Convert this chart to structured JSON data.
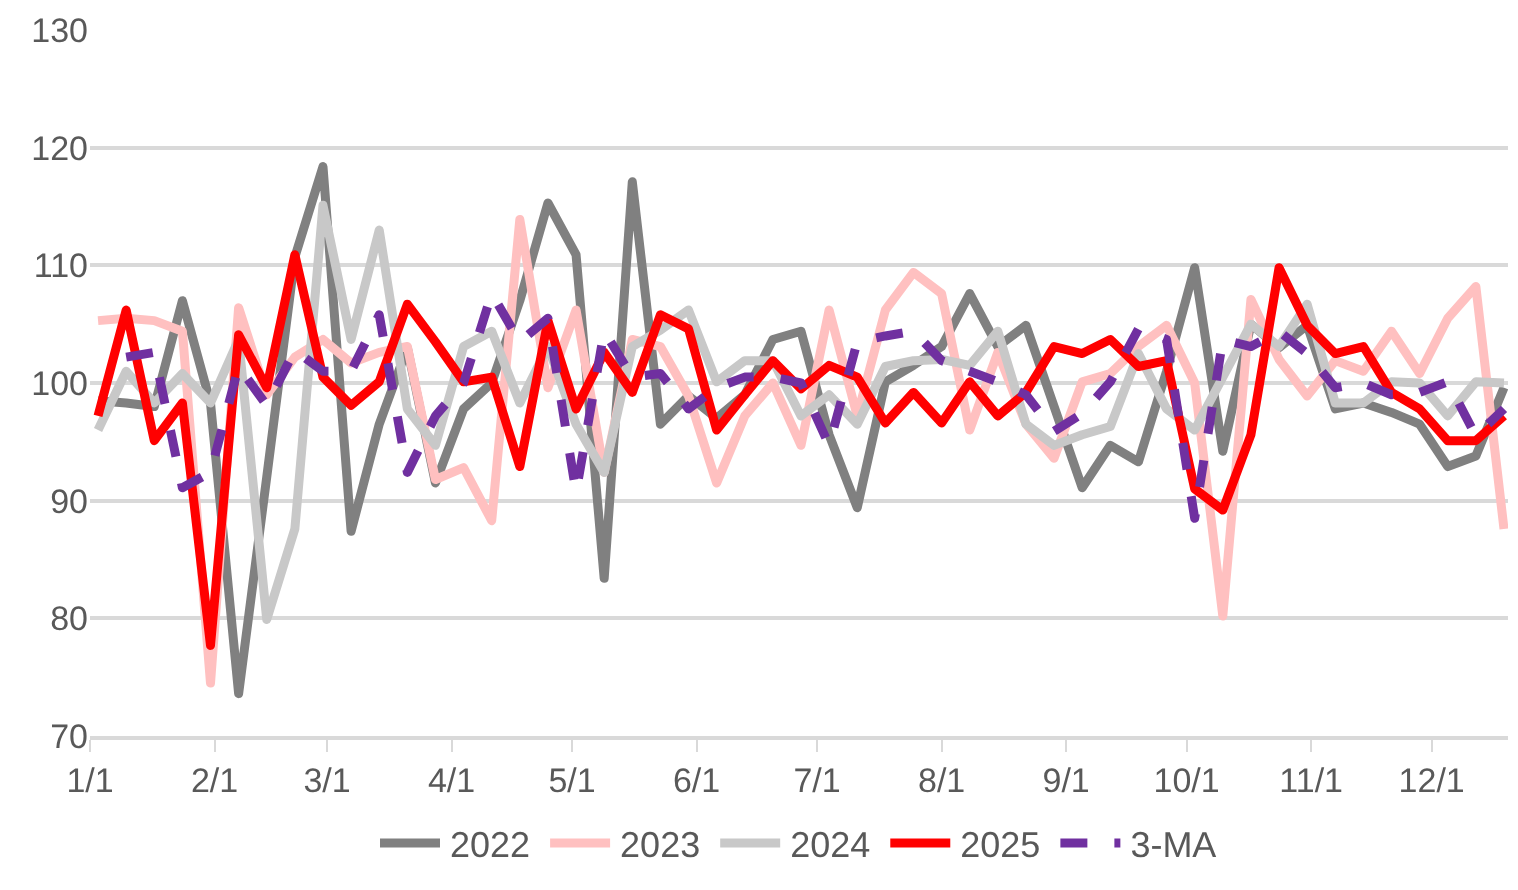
{
  "chart_data": {
    "type": "line",
    "x": [
      "--01-03",
      "--01-10",
      "--01-17",
      "--01-24",
      "--01-31",
      "--02-07",
      "--02-14",
      "--02-21",
      "--02-28",
      "--03-07",
      "--03-14",
      "--03-21",
      "--03-28",
      "--04-04",
      "--04-11",
      "--04-18",
      "--04-25",
      "--05-02",
      "--05-09",
      "--05-16",
      "--05-23",
      "--05-30",
      "--06-06",
      "--06-13",
      "--06-20",
      "--06-27",
      "--07-04",
      "--07-11",
      "--07-18",
      "--07-25",
      "--08-01",
      "--08-08",
      "--08-15",
      "--08-22",
      "--08-29",
      "--09-05",
      "--09-12",
      "--09-19",
      "--09-26",
      "--10-03",
      "--10-10",
      "--10-17",
      "--10-24",
      "--10-31",
      "--11-07",
      "--11-14",
      "--11-21",
      "--11-28",
      "--12-05",
      "--12-12",
      "--12-19"
    ],
    "series": [
      {
        "name": "2022",
        "color": "#808080",
        "line_style": "solid",
        "values": [
          98.5,
          98.3,
          98,
          107,
          98.3,
          73.6,
          92,
          110.7,
          118.4,
          87.4,
          96.5,
          103,
          91.5,
          97.8,
          100,
          107,
          115.3,
          110.9,
          83.4,
          117.1,
          96.5,
          98.9,
          97,
          99,
          103.7,
          104.4,
          95.6,
          89.4,
          100.1,
          101.5,
          103.1,
          107.6,
          103.1,
          104.9,
          98,
          91.1,
          94.7,
          93.3,
          101,
          109.8,
          94.2,
          105,
          103,
          104.9,
          97.8,
          98.3,
          97.5,
          96.5,
          92.9,
          93.8,
          99.6
        ]
      },
      {
        "name": "2023",
        "color": "#ffc0c0",
        "line_style": "solid",
        "values": [
          105.3,
          105.5,
          105.3,
          104.4,
          74.5,
          106.4,
          99,
          102.2,
          103.7,
          101.7,
          102.6,
          103.1,
          91.8,
          92.8,
          88.3,
          113.9,
          99.6,
          106.2,
          92.4,
          103.7,
          103.1,
          98.9,
          91.5,
          97.2,
          100,
          94.7,
          106.2,
          97.2,
          106.2,
          109.4,
          107.6,
          96,
          102.6,
          96.5,
          93.6,
          100.1,
          100.8,
          103.1,
          104.9,
          100,
          80.2,
          107.1,
          102,
          98.9,
          101.9,
          101,
          104.4,
          100.8,
          105.5,
          108.2,
          87.6
        ]
      },
      {
        "name": "2024",
        "color": "#c8c8c8",
        "line_style": "solid",
        "values": [
          96,
          101,
          98.3,
          100.8,
          98.3,
          103.7,
          79.9,
          87.6,
          115.1,
          103.7,
          113,
          97.8,
          94.7,
          103.1,
          104.4,
          98.3,
          103.1,
          96.5,
          92.4,
          103.1,
          104.5,
          106.2,
          100.1,
          101.9,
          101.9,
          97.2,
          99,
          96.5,
          101.4,
          101.9,
          102,
          101.5,
          104.4,
          96.5,
          94.7,
          95.6,
          96.3,
          102.5,
          97.8,
          96,
          100.5,
          105,
          103.1,
          106.7,
          98.3,
          98.3,
          100.1,
          100,
          97.2,
          100.1,
          100
        ]
      },
      {
        "name": "2025",
        "color": "#ff0000",
        "line_style": "solid",
        "values": [
          97.2,
          106.2,
          95.1,
          98.3,
          77.7,
          104.1,
          99.6,
          110.9,
          100.5,
          98.1,
          100.1,
          106.7,
          103.5,
          100.1,
          100.5,
          92.9,
          105.3,
          97.8,
          102.6,
          99.2,
          105.8,
          104.6,
          96,
          99,
          101.9,
          99.5,
          101.5,
          100.5,
          96.6,
          99.2,
          96.6,
          100.1,
          97.2,
          99.2,
          103.1,
          102.5,
          103.7,
          101.4,
          101.9,
          91,
          89.2,
          95.6,
          109.8,
          104.9,
          102.5,
          103.1,
          99.2,
          97.8,
          95.1,
          95.1,
          97.2
        ]
      },
      {
        "name": "3-MA",
        "color": "#7030a0",
        "line_style": "dashed",
        "values": [
          null,
          102.2,
          102.6,
          91.1,
          92.4,
          101.4,
          98.1,
          102.8,
          101,
          101,
          105.8,
          92.4,
          97.2,
          100,
          107.6,
          103.5,
          105.5,
          90.7,
          104.4,
          100.5,
          100.8,
          97.8,
          99.6,
          100.5,
          100.5,
          100,
          94.7,
          103.5,
          104,
          104.4,
          101.9,
          101,
          100.1,
          99,
          95.9,
          97.4,
          100.1,
          104.6,
          103.7,
          88.5,
          103.7,
          103.1,
          104.4,
          102.5,
          99.6,
          100,
          99,
          99.2,
          100.1,
          95.5,
          97.8
        ]
      }
    ],
    "xlim": [
      "--01-01",
      "--12-20"
    ],
    "xticks": [
      {
        "value": "--01-01",
        "label": "1/1"
      },
      {
        "value": "--02-01",
        "label": "2/1"
      },
      {
        "value": "--03-01",
        "label": "3/1"
      },
      {
        "value": "--04-01",
        "label": "4/1"
      },
      {
        "value": "--05-01",
        "label": "5/1"
      },
      {
        "value": "--06-01",
        "label": "6/1"
      },
      {
        "value": "--07-01",
        "label": "7/1"
      },
      {
        "value": "--08-01",
        "label": "8/1"
      },
      {
        "value": "--09-01",
        "label": "9/1"
      },
      {
        "value": "--10-01",
        "label": "10/1"
      },
      {
        "value": "--11-01",
        "label": "11/1"
      },
      {
        "value": "--12-01",
        "label": "12/1"
      }
    ],
    "ylim": [
      70,
      130
    ],
    "yticks": [
      70,
      80,
      90,
      100,
      110,
      120,
      130
    ],
    "grid": "y",
    "legend": "bottom",
    "marker": "none"
  }
}
